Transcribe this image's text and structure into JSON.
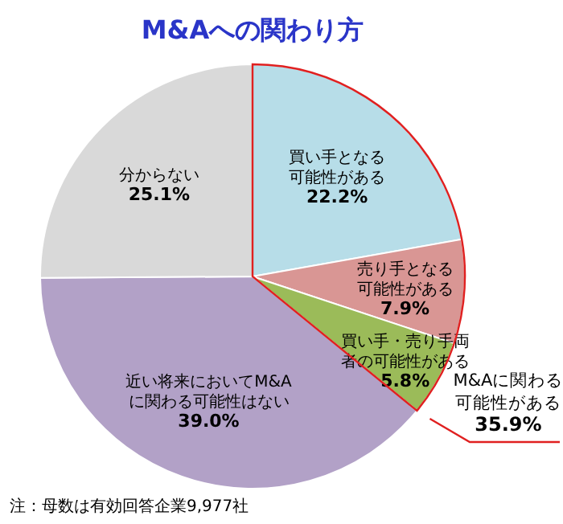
{
  "chart_data": {
    "type": "pie",
    "title": "M&Aへの関わり方",
    "categories": [
      "買い手となる可能性がある",
      "売り手となる可能性がある",
      "買い手・売り手両者の可能性がある",
      "近い将来においてM&Aに関わる可能性はない",
      "分からない"
    ],
    "values": [
      22.2,
      7.9,
      5.8,
      39.0,
      25.1
    ],
    "value_labels": [
      "22.2%",
      "7.9%",
      "5.8%",
      "39.0%",
      "25.1%"
    ],
    "colors": [
      "#b7dde8",
      "#d99694",
      "#9bbb59",
      "#b2a1c7",
      "#d9d9d9"
    ],
    "annotations": [
      "M&Aに関わる可能性がある35.9%",
      "注：母数は有効回答企業9,977社"
    ],
    "legend": false
  }
}
